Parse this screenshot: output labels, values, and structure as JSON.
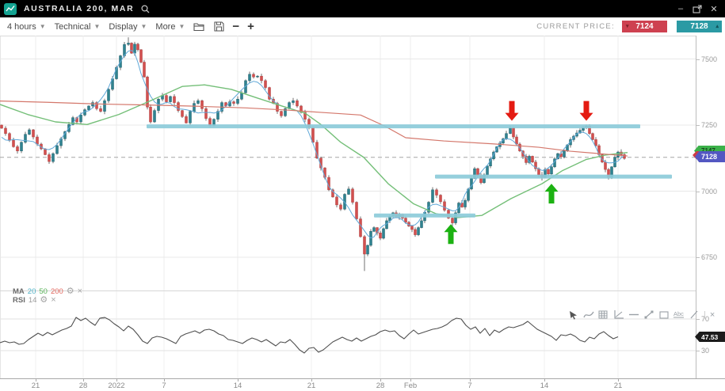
{
  "titlebar": {
    "title": "AUSTRALIA 200, MAR",
    "minimize": "–",
    "close": "✕"
  },
  "toolbar": {
    "menus": [
      "4 hours",
      "Technical",
      "Display",
      "More"
    ],
    "zoom_out": "−",
    "zoom_in": "+",
    "current_price_label": "CURRENT PRICE:",
    "sell_price": "7124",
    "buy_price": "7128"
  },
  "colors": {
    "sell_red": "#ce4150",
    "buy_teal": "#2b9aa4",
    "logo_teal": "#14a392",
    "up_candle": "#2f8390",
    "down_candle": "#d2504f",
    "ma20": "#5fa8d8",
    "ma50": "#74bf78",
    "ma200": "#d4776b",
    "level_band": "#8ccbd9",
    "signal_red": "#e41b12",
    "signal_green": "#1cb212",
    "rsi_line": "#4f4f4f"
  },
  "main_chart": {
    "indicator": {
      "name": "MA",
      "periods": [
        "20",
        "50",
        "200"
      ]
    },
    "price_tags": {
      "last_green": "7147",
      "current_blue": "7128"
    }
  },
  "rsi_panel": {
    "indicator": {
      "name": "RSI",
      "period": "14"
    },
    "current": "47.53",
    "overbought": "70",
    "oversold": "30"
  },
  "draw_toolbar": {
    "tools": [
      "cursor",
      "curve",
      "grid",
      "chart-axes",
      "horizontal-line",
      "trend-line",
      "rectangle",
      "text",
      "diagonal-line",
      "separator",
      "close"
    ],
    "text_tool_label": "Abc"
  },
  "chart_data": [
    {
      "type": "candlestick",
      "instrument": "AUSTRALIA 200, MAR",
      "interval": "4 hours",
      "ylim": [
        6690,
        7600
      ],
      "y_ticks": [
        7500,
        7250,
        7000,
        6750
      ],
      "x_tick_labels": [
        [
          45,
          "21"
        ],
        [
          105,
          "28"
        ],
        [
          147,
          "2022"
        ],
        [
          207,
          "7"
        ],
        [
          300,
          "14"
        ],
        [
          393,
          "21"
        ],
        [
          480,
          "28"
        ],
        [
          518,
          "Feb"
        ],
        [
          593,
          "7"
        ],
        [
          687,
          "14"
        ],
        [
          780,
          "21"
        ]
      ],
      "current_price_line": 7128,
      "closes": [
        [
          2,
          7238
        ],
        [
          7,
          7218
        ],
        [
          12,
          7192
        ],
        [
          17,
          7168
        ],
        [
          22,
          7152
        ],
        [
          27,
          7185
        ],
        [
          32,
          7215
        ],
        [
          37,
          7232
        ],
        [
          42,
          7205
        ],
        [
          47,
          7178
        ],
        [
          52,
          7160
        ],
        [
          57,
          7138
        ],
        [
          62,
          7112
        ],
        [
          67,
          7142
        ],
        [
          72,
          7172
        ],
        [
          77,
          7198
        ],
        [
          82,
          7225
        ],
        [
          87,
          7252
        ],
        [
          92,
          7278
        ],
        [
          97,
          7262
        ],
        [
          102,
          7288
        ],
        [
          107,
          7308
        ],
        [
          112,
          7322
        ],
        [
          117,
          7335
        ],
        [
          122,
          7312
        ],
        [
          127,
          7302
        ],
        [
          132,
          7342
        ],
        [
          137,
          7385
        ],
        [
          142,
          7425
        ],
        [
          147,
          7468
        ],
        [
          152,
          7512
        ],
        [
          157,
          7555
        ],
        [
          162,
          7560
        ],
        [
          166,
          7522
        ],
        [
          170,
          7556
        ],
        [
          174,
          7535
        ],
        [
          178,
          7488
        ],
        [
          182,
          7432
        ],
        [
          186,
          7318
        ],
        [
          190,
          7262
        ],
        [
          195,
          7305
        ],
        [
          200,
          7348
        ],
        [
          205,
          7362
        ],
        [
          210,
          7338
        ],
        [
          215,
          7358
        ],
        [
          220,
          7335
        ],
        [
          225,
          7305
        ],
        [
          230,
          7282
        ],
        [
          235,
          7258
        ],
        [
          240,
          7302
        ],
        [
          245,
          7332
        ],
        [
          250,
          7342
        ],
        [
          255,
          7312
        ],
        [
          260,
          7275
        ],
        [
          265,
          7248
        ],
        [
          270,
          7272
        ],
        [
          275,
          7302
        ],
        [
          280,
          7335
        ],
        [
          285,
          7322
        ],
        [
          290,
          7338
        ],
        [
          295,
          7332
        ],
        [
          300,
          7348
        ],
        [
          305,
          7372
        ],
        [
          310,
          7418
        ],
        [
          315,
          7442
        ],
        [
          320,
          7432
        ],
        [
          325,
          7435
        ],
        [
          330,
          7418
        ],
        [
          335,
          7392
        ],
        [
          340,
          7348
        ],
        [
          345,
          7332
        ],
        [
          350,
          7302
        ],
        [
          355,
          7285
        ],
        [
          360,
          7312
        ],
        [
          365,
          7335
        ],
        [
          370,
          7342
        ],
        [
          375,
          7322
        ],
        [
          380,
          7298
        ],
        [
          385,
          7272
        ],
        [
          390,
          7242
        ],
        [
          395,
          7185
        ],
        [
          400,
          7125
        ],
        [
          405,
          7088
        ],
        [
          410,
          7052
        ],
        [
          415,
          7005
        ],
        [
          420,
          6978
        ],
        [
          425,
          6948
        ],
        [
          430,
          6932
        ],
        [
          435,
          6988
        ],
        [
          440,
          7008
        ],
        [
          445,
          6958
        ],
        [
          450,
          6895
        ],
        [
          455,
          6828
        ],
        [
          460,
          6762
        ],
        [
          464,
          6795
        ],
        [
          468,
          6848
        ],
        [
          472,
          6862
        ],
        [
          476,
          6842
        ],
        [
          480,
          6822
        ],
        [
          484,
          6858
        ],
        [
          488,
          6888
        ],
        [
          492,
          6905
        ],
        [
          496,
          6918
        ],
        [
          500,
          6902
        ],
        [
          504,
          6912
        ],
        [
          508,
          6898
        ],
        [
          512,
          6882
        ],
        [
          516,
          6868
        ],
        [
          520,
          6855
        ],
        [
          524,
          6835
        ],
        [
          528,
          6862
        ],
        [
          532,
          6888
        ],
        [
          536,
          6920
        ],
        [
          541,
          6958
        ],
        [
          546,
          7005
        ],
        [
          551,
          6985
        ],
        [
          556,
          6960
        ],
        [
          561,
          6928
        ],
        [
          566,
          6898
        ],
        [
          571,
          6880
        ],
        [
          575,
          6918
        ],
        [
          579,
          6955
        ],
        [
          583,
          6940
        ],
        [
          587,
          6965
        ],
        [
          591,
          7008
        ],
        [
          595,
          7048
        ],
        [
          599,
          7085
        ],
        [
          603,
          7058
        ],
        [
          607,
          7032
        ],
        [
          611,
          7062
        ],
        [
          615,
          7095
        ],
        [
          619,
          7122
        ],
        [
          623,
          7148
        ],
        [
          627,
          7168
        ],
        [
          631,
          7182
        ],
        [
          635,
          7198
        ],
        [
          639,
          7218
        ],
        [
          644,
          7240
        ],
        [
          648,
          7205
        ],
        [
          652,
          7178
        ],
        [
          656,
          7152
        ],
        [
          660,
          7132
        ],
        [
          664,
          7108
        ],
        [
          668,
          7132
        ],
        [
          672,
          7110
        ],
        [
          676,
          7085
        ],
        [
          680,
          7062
        ],
        [
          684,
          7052
        ],
        [
          688,
          7082
        ],
        [
          692,
          7065
        ],
        [
          696,
          7092
        ],
        [
          700,
          7122
        ],
        [
          704,
          7142
        ],
        [
          708,
          7130
        ],
        [
          712,
          7152
        ],
        [
          716,
          7175
        ],
        [
          720,
          7195
        ],
        [
          724,
          7208
        ],
        [
          728,
          7220
        ],
        [
          732,
          7230
        ],
        [
          736,
          7242
        ],
        [
          740,
          7246
        ],
        [
          744,
          7218
        ],
        [
          748,
          7195
        ],
        [
          752,
          7172
        ],
        [
          756,
          7138
        ],
        [
          760,
          7110
        ],
        [
          764,
          7082
        ],
        [
          768,
          7052
        ],
        [
          772,
          7092
        ],
        [
          776,
          7128
        ],
        [
          780,
          7148
        ],
        [
          784,
          7138
        ],
        [
          788,
          7124
        ]
      ],
      "wick_overrides": [
        {
          "x": 162,
          "high": 7582
        },
        {
          "x": 460,
          "low": 6698
        },
        {
          "x": 644,
          "high": 7247
        },
        {
          "x": 740,
          "high": 7252
        },
        {
          "x": 571,
          "low": 6862
        },
        {
          "x": 684,
          "low": 7040
        }
      ],
      "ma50": [
        [
          0,
          7328
        ],
        [
          35,
          7290
        ],
        [
          70,
          7262
        ],
        [
          110,
          7252
        ],
        [
          150,
          7290
        ],
        [
          190,
          7342
        ],
        [
          230,
          7396
        ],
        [
          258,
          7402
        ],
        [
          292,
          7385
        ],
        [
          325,
          7352
        ],
        [
          360,
          7318
        ],
        [
          385,
          7295
        ],
        [
          405,
          7252
        ],
        [
          430,
          7185
        ],
        [
          459,
          7128
        ],
        [
          490,
          7028
        ],
        [
          522,
          6952
        ],
        [
          550,
          6915
        ],
        [
          578,
          6900
        ],
        [
          608,
          6908
        ],
        [
          645,
          6972
        ],
        [
          684,
          7028
        ],
        [
          710,
          7078
        ],
        [
          740,
          7120
        ],
        [
          765,
          7137
        ],
        [
          792,
          7146
        ]
      ],
      "ma200": [
        [
          0,
          7341
        ],
        [
          60,
          7336
        ],
        [
          120,
          7330
        ],
        [
          185,
          7326
        ],
        [
          250,
          7321
        ],
        [
          310,
          7315
        ],
        [
          360,
          7307
        ],
        [
          410,
          7297
        ],
        [
          455,
          7288
        ],
        [
          485,
          7247
        ],
        [
          512,
          7202
        ],
        [
          560,
          7190
        ],
        [
          622,
          7179
        ],
        [
          680,
          7166
        ],
        [
          720,
          7151
        ],
        [
          760,
          7141
        ],
        [
          792,
          7133
        ]
      ],
      "support_resistance": [
        {
          "price": 7245,
          "x1": 185,
          "x2": 808
        },
        {
          "price": 7055,
          "x1": 549,
          "x2": 848
        },
        {
          "price": 6908,
          "x1": 472,
          "x2": 600
        }
      ],
      "signals": [
        {
          "dir": "down",
          "x": 646,
          "tip_price": 7266
        },
        {
          "dir": "down",
          "x": 740,
          "tip_price": 7266
        },
        {
          "dir": "up",
          "x": 569,
          "tip_price": 6875
        },
        {
          "dir": "up",
          "x": 696,
          "tip_price": 7028
        }
      ]
    },
    {
      "type": "line",
      "name": "RSI",
      "period": 14,
      "ylim": [
        0,
        100
      ],
      "overbought": 70,
      "oversold": 30,
      "current": 47.53,
      "x_start": 0,
      "x_step": 6,
      "values": [
        40,
        42,
        40,
        41,
        38,
        39,
        44,
        48,
        52,
        49,
        53,
        50,
        53,
        56,
        58,
        61,
        72,
        68,
        71,
        66,
        62,
        71,
        72,
        69,
        64,
        60,
        55,
        61,
        57,
        50,
        42,
        39,
        46,
        48,
        47,
        45,
        42,
        39,
        48,
        51,
        53,
        55,
        52,
        56,
        57,
        55,
        51,
        49,
        44,
        43,
        41,
        39,
        43,
        46,
        44,
        41,
        44,
        40,
        36,
        41,
        40,
        44,
        38,
        31,
        27,
        33,
        34,
        28,
        31,
        36,
        41,
        44,
        47,
        44,
        42,
        46,
        42,
        45,
        48,
        50,
        54,
        56,
        54,
        55,
        49,
        45,
        51,
        56,
        51,
        53,
        55,
        57,
        58,
        60,
        63,
        68,
        71,
        70,
        62,
        57,
        60,
        52,
        58,
        49,
        56,
        53,
        57,
        60,
        59,
        61,
        63,
        67,
        62,
        57,
        54,
        51,
        48,
        43,
        50,
        49,
        51,
        48,
        43,
        41,
        47,
        45,
        51,
        54,
        49,
        45,
        47.5
      ]
    }
  ]
}
